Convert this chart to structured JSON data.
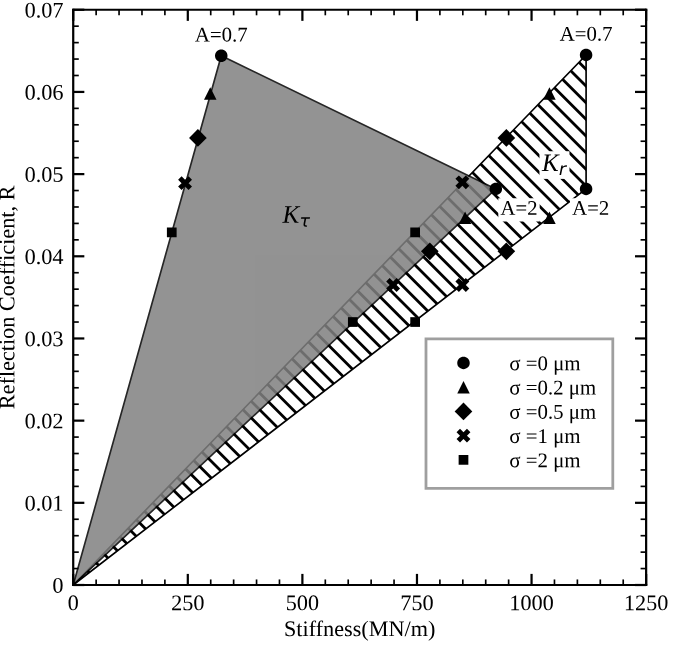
{
  "chart_data": {
    "type": "scatter",
    "xlabel": "Stiffness(MN/m)",
    "ylabel": "Reflection Coefficient, R",
    "xlim": [
      0,
      1250
    ],
    "xticks": [
      0,
      250,
      500,
      750,
      1000,
      1250
    ],
    "ylim": [
      0,
      0.07
    ],
    "yticks": [
      0,
      0.01,
      0.02,
      0.03,
      0.04,
      0.05,
      0.06,
      0.07
    ],
    "grid": false,
    "legend": "bottom right",
    "series": [
      {
        "type": "area",
        "color": "#808080",
        "x": [
          0,
          323,
          922
        ],
        "values": [
          0,
          0.0644,
          0.0482
        ]
      },
      {
        "type": "area",
        "x": [
          0,
          1119,
          1119
        ],
        "values": [
          0,
          0.0645,
          0.0482
        ]
      },
      {
        "name": "σ =0 μm",
        "color": "#000000",
        "marker": "circle",
        "x": [
          323,
          922,
          1119,
          1119
        ],
        "values": [
          0.0644,
          0.0482,
          0.0645,
          0.0482
        ]
      },
      {
        "name": "σ =0.2 μm",
        "color": "#000000",
        "marker": "triangle",
        "x": [
          299,
          855,
          1039,
          1039
        ],
        "values": [
          0.0598,
          0.0447,
          0.0598,
          0.0447
        ]
      },
      {
        "name": "σ =0.5 μm",
        "color": "#000000",
        "marker": "diamond",
        "x": [
          272,
          778,
          945,
          945
        ],
        "values": [
          0.0544,
          0.0406,
          0.0544,
          0.0406
        ]
      },
      {
        "name": "σ =1 μm",
        "color": "#000000",
        "marker": "cross",
        "x": [
          244,
          698,
          849,
          849
        ],
        "values": [
          0.0489,
          0.0365,
          0.049,
          0.0365
        ]
      },
      {
        "name": "σ =2 μm",
        "color": "#000000",
        "marker": "square",
        "x": [
          215,
          610,
          746,
          746
        ],
        "values": [
          0.0429,
          0.032,
          0.0429,
          0.032
        ]
      }
    ],
    "annotations": [
      {
        "text": "A=0.7",
        "x": 323,
        "y": 0.0644
      },
      {
        "text": "A=2",
        "x": 922,
        "y": 0.0482
      },
      {
        "text": "A=0.7",
        "x": 1119,
        "y": 0.0645
      },
      {
        "text": "A=2",
        "x": 1119,
        "y": 0.0482
      },
      "K$_{τ}$",
      "K$_{r}$"
    ]
  }
}
